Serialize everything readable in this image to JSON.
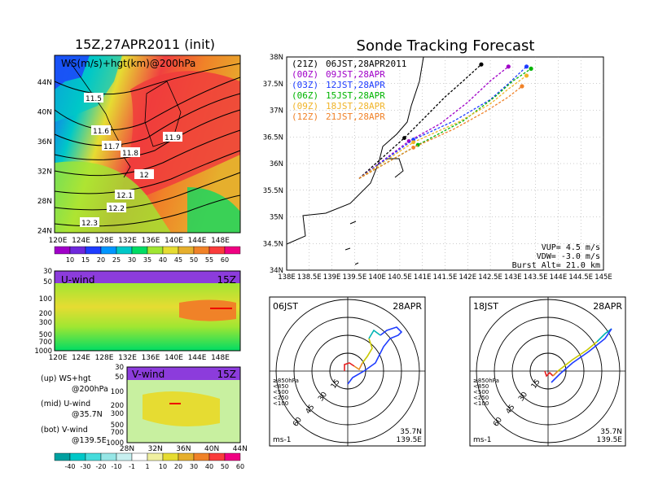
{
  "left": {
    "title": "15Z,27APR2011 (init)",
    "map_label": "WS(m/s)+hgt(km)@200hPa",
    "lat_ticks": [
      "44N",
      "40N",
      "36N",
      "32N",
      "28N",
      "24N"
    ],
    "lon_ticks": [
      "120E",
      "124E",
      "128E",
      "132E",
      "136E",
      "140E",
      "144E",
      "148E"
    ],
    "contours": [
      "11.5",
      "11.6",
      "11.7",
      "11.8",
      "11.9",
      "12",
      "12.1",
      "12.2",
      "12.3"
    ],
    "colorbar_ticks": [
      "10",
      "15",
      "20",
      "25",
      "30",
      "35",
      "40",
      "45",
      "50",
      "55",
      "60"
    ],
    "colorbar_colors": [
      "#a000c8",
      "#6e28dc",
      "#1e3cff",
      "#0096ff",
      "#00c8c8",
      "#00dc64",
      "#a0e632",
      "#e6dc32",
      "#e6af2d",
      "#f08228",
      "#fa3c3c",
      "#f00082"
    ],
    "u_label": "U-wind",
    "u_time": "15Z",
    "p_ticks": [
      "30",
      "50",
      "100",
      "200",
      "300",
      "500",
      "700",
      "1000"
    ],
    "v_label": "V-wind",
    "v_time": "15Z",
    "v_lat_ticks": [
      "28N",
      "32N",
      "36N",
      "40N",
      "44N"
    ],
    "legend": [
      "(up) WS+hgt",
      "@200hPa",
      "(mid) U-wind",
      "@35.7N",
      "(bot) V-wind",
      "@139.5E"
    ],
    "bottom_colorbar_ticks": [
      "-40",
      "-30",
      "-20",
      "-10",
      "-1",
      "1",
      "10",
      "20",
      "30",
      "40",
      "50",
      "60"
    ],
    "bottom_colorbar_colors": [
      "#00a0a0",
      "#00c8c8",
      "#46dcdc",
      "#96e6e6",
      "#c8f0f0",
      "#ffffff",
      "#f0f0a0",
      "#e6dc32",
      "#e6af2d",
      "#f08228",
      "#fa3c3c",
      "#f00082"
    ]
  },
  "track": {
    "title": "Sonde Tracking Forecast",
    "lat_ticks": [
      "38N",
      "37.5N",
      "37N",
      "36.5N",
      "36N",
      "35.5N",
      "35N",
      "34.5N",
      "34N"
    ],
    "lon_ticks": [
      "138E",
      "138.5E",
      "139E",
      "139.5E",
      "140E",
      "140.5E",
      "141E",
      "141.5E",
      "142E",
      "142.5E",
      "143E",
      "143.5E",
      "144E",
      "144.5E",
      "145E"
    ],
    "launches": [
      {
        "utc": "(21Z)",
        "jst": "06JST,28APR2011",
        "color": "#000000"
      },
      {
        "utc": "(00Z)",
        "jst": "09JST,28APR",
        "color": "#a000c8"
      },
      {
        "utc": "(03Z)",
        "jst": "12JST,28APR",
        "color": "#1e3cff"
      },
      {
        "utc": "(06Z)",
        "jst": "15JST,28APR",
        "color": "#00b400"
      },
      {
        "utc": "(09Z)",
        "jst": "18JST,28APR",
        "color": "#f0b428"
      },
      {
        "utc": "(12Z)",
        "jst": "21JST,28APR",
        "color": "#f08228"
      }
    ],
    "stats": [
      "VUP=  4.5 m/s",
      "VDW= -3.0 m/s",
      "Burst Alt= 21.0 km"
    ]
  },
  "chart_data": [
    {
      "type": "line",
      "title": "Sonde Tracking Forecast",
      "xlabel": "",
      "ylabel": "",
      "xlim": [
        138,
        145
      ],
      "ylim": [
        34,
        38
      ],
      "series": [
        {
          "name": "06JST,28APR2011",
          "x": [
            139.6,
            140.6,
            141.0,
            141.5,
            141.9,
            142.3
          ],
          "y": [
            35.72,
            36.48,
            36.82,
            37.25,
            37.55,
            37.86
          ]
        },
        {
          "name": "09JST,28APR",
          "x": [
            139.6,
            140.7,
            141.4,
            142.0,
            142.5,
            142.9
          ],
          "y": [
            35.72,
            36.42,
            36.75,
            37.15,
            37.55,
            37.82
          ]
        },
        {
          "name": "12JST,28APR",
          "x": [
            139.6,
            140.8,
            141.7,
            142.5,
            142.9,
            143.3
          ],
          "y": [
            35.72,
            36.45,
            36.8,
            37.2,
            37.5,
            37.82
          ]
        },
        {
          "name": "15JST,28APR",
          "x": [
            139.6,
            140.9,
            141.9,
            142.6,
            143.0,
            143.4
          ],
          "y": [
            35.72,
            36.35,
            36.8,
            37.25,
            37.55,
            37.78
          ]
        },
        {
          "name": "18JST,28APR",
          "x": [
            139.6,
            140.8,
            141.8,
            142.5,
            142.9,
            143.3
          ],
          "y": [
            35.72,
            36.4,
            36.78,
            37.12,
            37.4,
            37.65
          ]
        },
        {
          "name": "21JST,28APR",
          "x": [
            139.6,
            140.8,
            141.7,
            142.4,
            142.9,
            143.2
          ],
          "y": [
            35.72,
            36.3,
            36.65,
            36.98,
            37.25,
            37.45
          ]
        }
      ]
    },
    {
      "type": "line",
      "panel_label": "06JST",
      "date": "28APR",
      "pressure_legend": [
        "≥850hPa",
        "<850",
        "<500",
        "<250",
        "<100"
      ],
      "pressure_colors": [
        "#e61e1e",
        "#e68c1e",
        "#c8c800",
        "#00b4b4",
        "#1e3cff"
      ],
      "ring_labels": [
        "15",
        "30",
        "45",
        "60"
      ],
      "units": "ms-1",
      "location": [
        "35.7N",
        "139.5E"
      ]
    },
    {
      "type": "line",
      "panel_label": "18JST",
      "date": "28APR",
      "pressure_legend": [
        "≥850hPa",
        "<850",
        "<500",
        "<250",
        "<100"
      ],
      "pressure_colors": [
        "#e61e1e",
        "#e68c1e",
        "#c8c800",
        "#00b4b4",
        "#1e3cff"
      ],
      "ring_labels": [
        "15",
        "30",
        "45",
        "60"
      ],
      "units": "ms-1",
      "location": [
        "35.7N",
        "139.5E"
      ]
    }
  ]
}
